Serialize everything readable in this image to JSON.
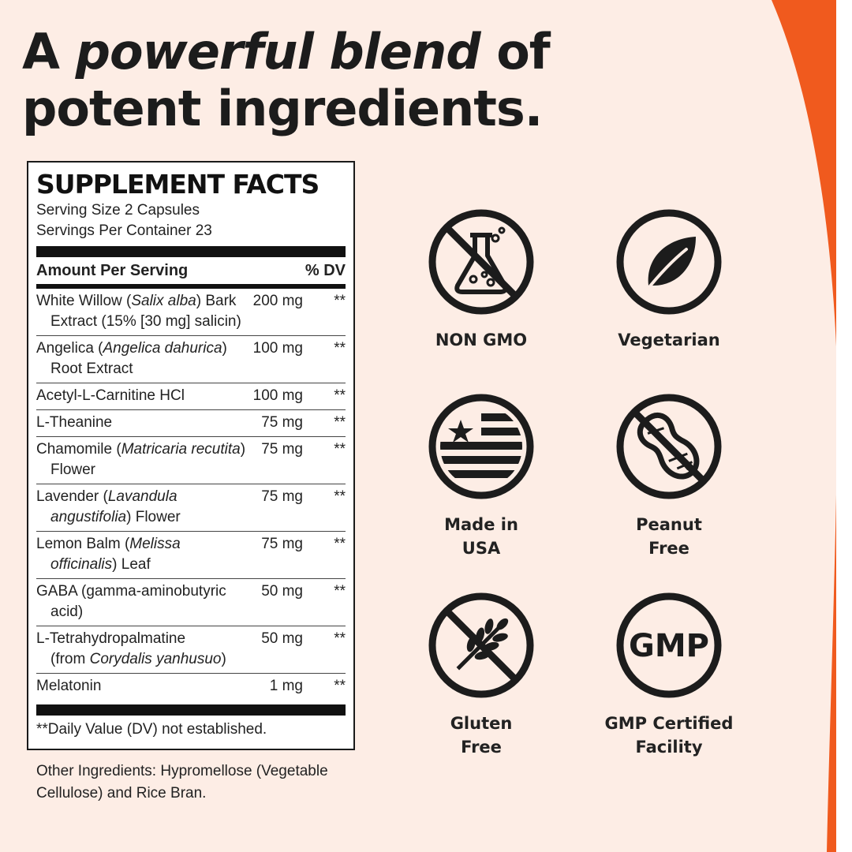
{
  "headline": {
    "line1_prefix": "A ",
    "line1_emphasis": "powerful blend",
    "line1_suffix": " of",
    "line2": "potent ingredients."
  },
  "supplement_facts": {
    "title": "SUPPLEMENT FACTS",
    "serving_size": "Serving Size 2 Capsules",
    "servings_per_container": "Servings Per Container 23",
    "amount_header": "Amount Per Serving",
    "dv_header": "% DV",
    "ingredients": [
      {
        "pre": "White Willow (",
        "latin": "Salix alba",
        "post": ") Bark",
        "line2": "Extract (15% [30 mg] salicin)",
        "line2_latin": "",
        "line2_post": "",
        "amount": "200 mg",
        "dv": "**"
      },
      {
        "pre": "Angelica (",
        "latin": "Angelica dahurica",
        "post": ")",
        "line2": "Root Extract",
        "line2_latin": "",
        "line2_post": "",
        "amount": "100 mg",
        "dv": "**"
      },
      {
        "pre": "Acetyl-L-Carnitine HCl",
        "latin": "",
        "post": "",
        "line2": "",
        "line2_latin": "",
        "line2_post": "",
        "amount": "100 mg",
        "dv": "**"
      },
      {
        "pre": "L-Theanine",
        "latin": "",
        "post": "",
        "line2": "",
        "line2_latin": "",
        "line2_post": "",
        "amount": "75 mg",
        "dv": "**"
      },
      {
        "pre": "Chamomile (",
        "latin": "Matricaria recutita",
        "post": ")",
        "line2": "Flower",
        "line2_latin": "",
        "line2_post": "",
        "amount": "75 mg",
        "dv": "**"
      },
      {
        "pre": "Lavender (",
        "latin": "Lavandula",
        "post": "",
        "line2": "",
        "line2_latin": "angustifolia",
        "line2_post": ") Flower",
        "amount": "75 mg",
        "dv": "**"
      },
      {
        "pre": "Lemon Balm (",
        "latin": "Melissa",
        "post": "",
        "line2": "",
        "line2_latin": "officinalis",
        "line2_post": ") Leaf",
        "amount": "75 mg",
        "dv": "**"
      },
      {
        "pre": "GABA (gamma-aminobutyric",
        "latin": "",
        "post": "",
        "line2": "acid)",
        "line2_latin": "",
        "line2_post": "",
        "amount": "50 mg",
        "dv": "**"
      },
      {
        "pre": "L-Tetrahydropalmatine",
        "latin": "",
        "post": "",
        "line2": "(from ",
        "line2_latin": "Corydalis yanhusuo",
        "line2_post": ")",
        "amount": "50 mg",
        "dv": "**"
      },
      {
        "pre": "Melatonin",
        "latin": "",
        "post": "",
        "line2": "",
        "line2_latin": "",
        "line2_post": "",
        "amount": "1 mg",
        "dv": "**"
      }
    ],
    "footnote": "**Daily Value (DV) not established."
  },
  "other_ingredients": "Other Ingredients: Hypromellose (Vegetable Cellulose) and Rice Bran.",
  "badges": [
    {
      "icon": "non-gmo-icon",
      "label": "NON GMO"
    },
    {
      "icon": "leaf-icon",
      "label": "Vegetarian"
    },
    {
      "icon": "usa-flag-icon",
      "label": "Made in\nUSA"
    },
    {
      "icon": "no-peanut-icon",
      "label": "Peanut\nFree"
    },
    {
      "icon": "no-wheat-icon",
      "label": "Gluten\nFree"
    },
    {
      "icon": "gmp-icon",
      "label": "GMP Certified\nFacility",
      "text": "GMP"
    }
  ],
  "colors": {
    "background": "#fdede5",
    "accent": "#f05a1e",
    "ink": "#1c1c1c"
  }
}
